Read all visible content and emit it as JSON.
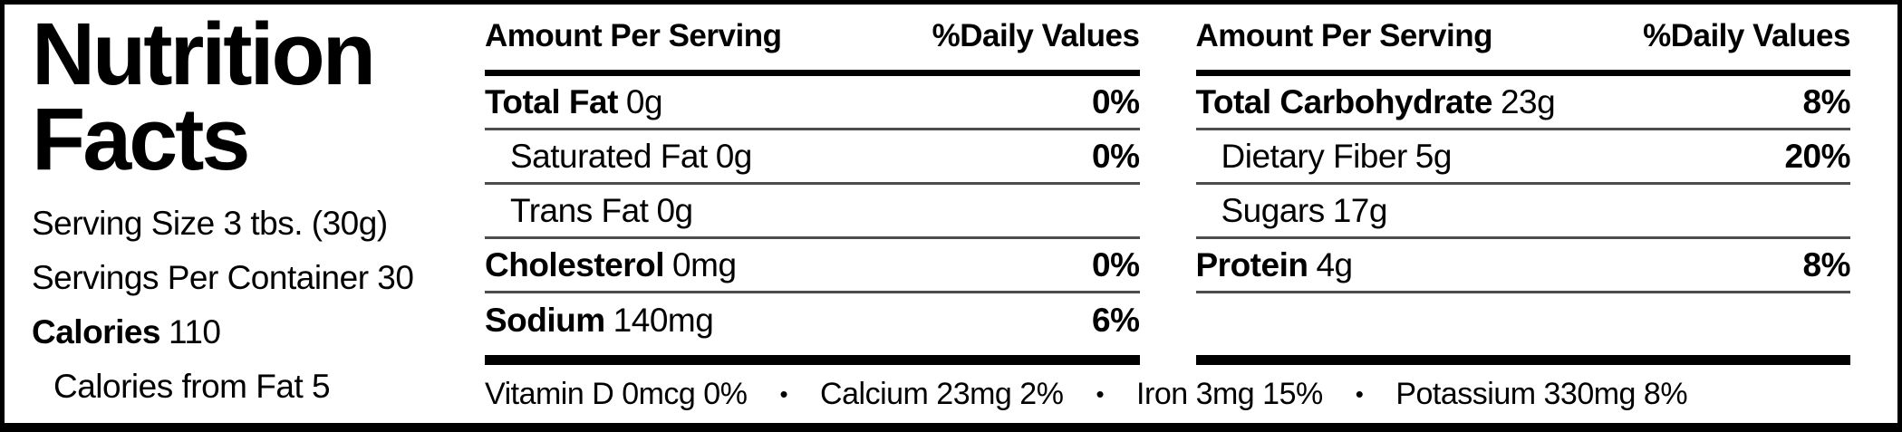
{
  "label": {
    "title_line1": "Nutrition",
    "title_line2": "Facts",
    "serving_size": "Serving Size 3 tbs. (30g)",
    "servings_per_container": "Servings Per Container 30",
    "calories_label": "Calories",
    "calories_value": "110",
    "calories_from_fat": "Calories from Fat 5"
  },
  "columns": [
    {
      "header_left": "Amount Per Serving",
      "header_right": "%Daily Values",
      "rows": [
        {
          "name": "Total Fat",
          "amount": "0g",
          "dv": "0%",
          "bold": true,
          "indent": false,
          "separator": true
        },
        {
          "name": "Saturated Fat",
          "amount": "0g",
          "dv": "0%",
          "bold": false,
          "indent": true,
          "separator": true
        },
        {
          "name": "Trans Fat",
          "amount": "0g",
          "dv": "",
          "bold": false,
          "indent": true,
          "separator": true
        },
        {
          "name": "Cholesterol",
          "amount": "0mg",
          "dv": "0%",
          "bold": true,
          "indent": false,
          "separator": true
        },
        {
          "name": "Sodium",
          "amount": "140mg",
          "dv": "6%",
          "bold": true,
          "indent": false,
          "separator": false
        }
      ]
    },
    {
      "header_left": "Amount Per Serving",
      "header_right": "%Daily Values",
      "rows": [
        {
          "name": "Total Carbohydrate",
          "amount": "23g",
          "dv": "8%",
          "bold": true,
          "indent": false,
          "separator": true
        },
        {
          "name": "Dietary Fiber",
          "amount": "5g",
          "dv": "20%",
          "bold": false,
          "indent": true,
          "separator": true
        },
        {
          "name": "Sugars",
          "amount": "17g",
          "dv": "",
          "bold": false,
          "indent": true,
          "separator": true
        },
        {
          "name": "Protein",
          "amount": "4g",
          "dv": "8%",
          "bold": true,
          "indent": false,
          "separator": true
        }
      ]
    }
  ],
  "micronutrients": {
    "separator": "•",
    "items": [
      "Vitamin D 0mcg 0%",
      "Calcium 23mg 2%",
      "Iron 3mg 15%",
      "Potassium 330mg 8%"
    ]
  },
  "colors": {
    "background": "#ffffff",
    "text": "#000000",
    "thick_rule": "#000000",
    "thin_rule": "#4d4d4d"
  }
}
